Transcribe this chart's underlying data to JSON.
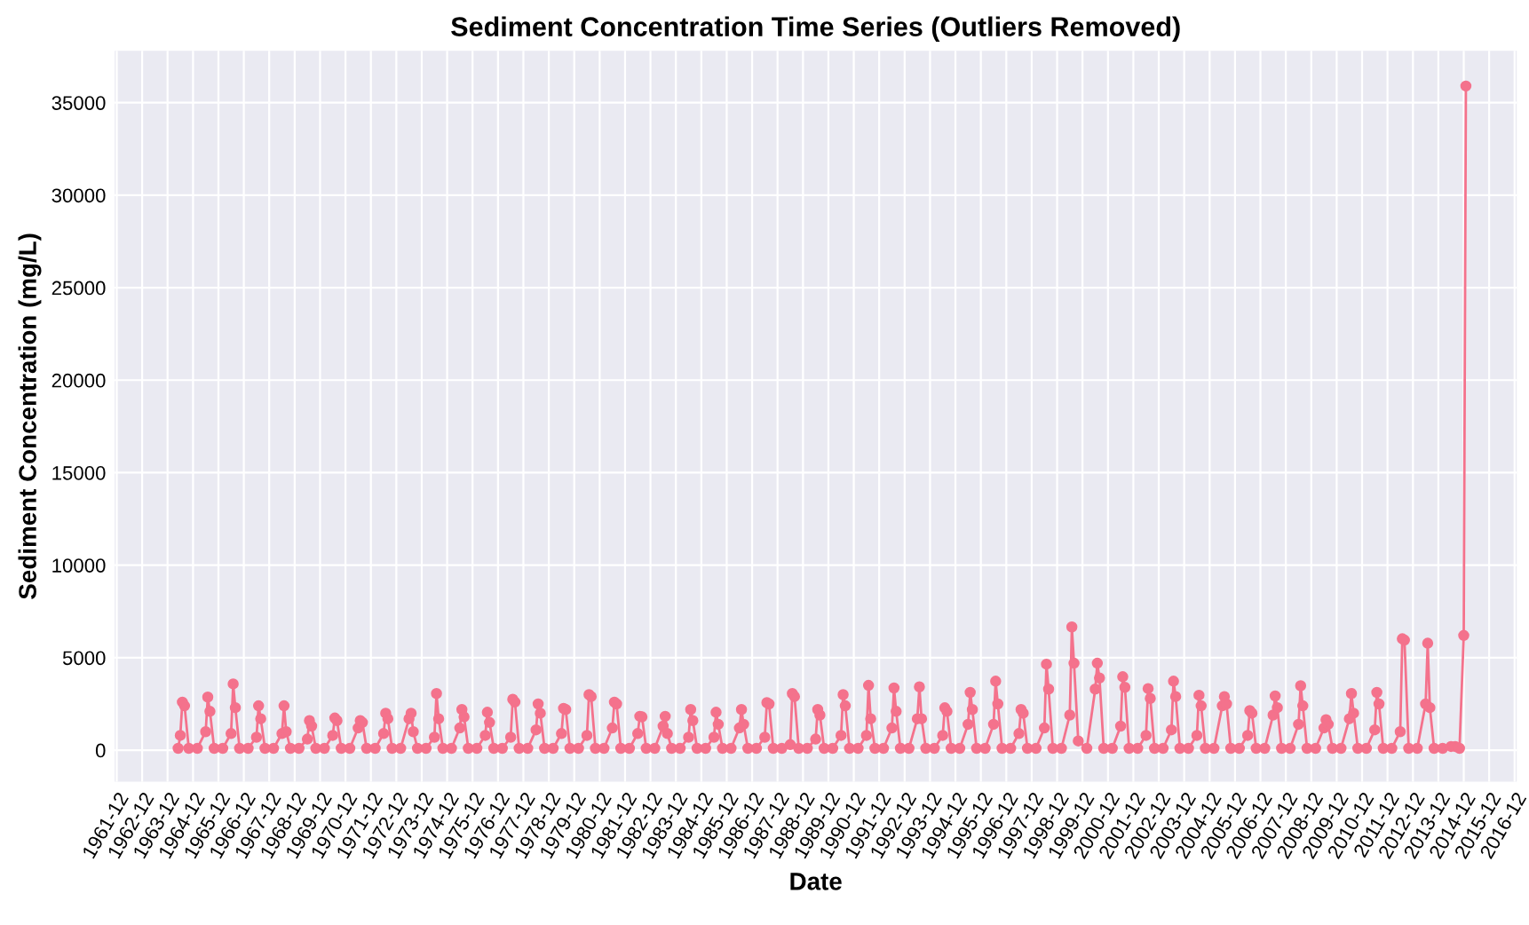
{
  "chart_data": {
    "type": "line",
    "title": "Sediment Concentration Time Series (Outliers Removed)",
    "xlabel": "Date",
    "ylabel": "Sediment Concentration (mg/L)",
    "xlim": [
      "1961-11",
      "2017-01"
    ],
    "ylim": [
      -1700,
      37800
    ],
    "xticks": [
      "1961-12",
      "1962-12",
      "1963-12",
      "1964-12",
      "1965-12",
      "1966-12",
      "1967-12",
      "1968-12",
      "1969-12",
      "1970-12",
      "1971-12",
      "1972-12",
      "1973-12",
      "1974-12",
      "1975-12",
      "1976-12",
      "1977-12",
      "1978-12",
      "1979-12",
      "1980-12",
      "1981-12",
      "1982-12",
      "1983-12",
      "1984-12",
      "1985-12",
      "1986-12",
      "1987-12",
      "1988-12",
      "1989-12",
      "1990-12",
      "1991-12",
      "1992-12",
      "1993-12",
      "1994-12",
      "1995-12",
      "1996-12",
      "1997-12",
      "1998-12",
      "1999-12",
      "2000-12",
      "2001-12",
      "2002-12",
      "2003-12",
      "2004-12",
      "2005-12",
      "2006-12",
      "2007-12",
      "2008-12",
      "2009-12",
      "2010-12",
      "2011-12",
      "2012-12",
      "2013-12",
      "2014-12",
      "2015-12",
      "2016-12"
    ],
    "yticks": [
      0,
      5000,
      10000,
      15000,
      20000,
      25000,
      30000,
      35000
    ],
    "grid": true,
    "marker": "circle",
    "line_style": "solid",
    "series": [
      {
        "color": "#f4728c",
        "x": [
          "1964-05",
          "1964-06",
          "1964-07",
          "1964-08",
          "1964-10",
          "1965-02",
          "1965-06",
          "1965-07",
          "1965-08",
          "1965-10",
          "1966-02",
          "1966-06",
          "1966-07",
          "1966-08",
          "1966-10",
          "1967-02",
          "1967-06",
          "1967-07",
          "1967-08",
          "1967-10",
          "1968-02",
          "1968-06",
          "1968-07",
          "1968-08",
          "1968-10",
          "1969-01",
          "1969-02",
          "1969-06",
          "1969-07",
          "1969-08",
          "1969-10",
          "1970-02",
          "1970-06",
          "1970-07",
          "1970-08",
          "1970-10",
          "1971-02",
          "1971-06",
          "1971-07",
          "1971-08",
          "1971-10",
          "1972-02",
          "1972-06",
          "1972-07",
          "1972-08",
          "1972-10",
          "1973-02",
          "1973-06",
          "1973-07",
          "1973-08",
          "1973-10",
          "1974-02",
          "1974-06",
          "1974-07",
          "1974-08",
          "1974-10",
          "1975-02",
          "1975-06",
          "1975-07",
          "1975-08",
          "1975-10",
          "1976-02",
          "1976-06",
          "1976-07",
          "1976-08",
          "1976-10",
          "1977-02",
          "1977-06",
          "1977-07",
          "1977-08",
          "1977-10",
          "1978-02",
          "1978-06",
          "1978-07",
          "1978-08",
          "1978-10",
          "1979-02",
          "1979-06",
          "1979-07",
          "1979-08",
          "1979-10",
          "1980-02",
          "1980-06",
          "1980-07",
          "1980-08",
          "1980-10",
          "1981-02",
          "1981-06",
          "1981-07",
          "1981-08",
          "1981-10",
          "1982-02",
          "1982-06",
          "1982-07",
          "1982-08",
          "1982-10",
          "1983-02",
          "1983-06",
          "1983-07",
          "1983-08",
          "1983-10",
          "1984-02",
          "1984-06",
          "1984-07",
          "1984-08",
          "1984-10",
          "1985-02",
          "1985-06",
          "1985-07",
          "1985-08",
          "1985-10",
          "1986-02",
          "1986-06",
          "1986-07",
          "1986-08",
          "1986-10",
          "1987-02",
          "1987-06",
          "1987-07",
          "1987-08",
          "1987-10",
          "1988-02",
          "1988-06",
          "1988-07",
          "1988-08",
          "1988-10",
          "1989-02",
          "1989-06",
          "1989-07",
          "1989-08",
          "1989-10",
          "1990-02",
          "1990-06",
          "1990-07",
          "1990-08",
          "1990-10",
          "1991-02",
          "1991-06",
          "1991-07",
          "1991-08",
          "1991-10",
          "1992-02",
          "1992-06",
          "1992-07",
          "1992-08",
          "1992-10",
          "1993-02",
          "1993-06",
          "1993-07",
          "1993-08",
          "1993-10",
          "1994-02",
          "1994-06",
          "1994-07",
          "1994-08",
          "1994-10",
          "1995-02",
          "1995-06",
          "1995-07",
          "1995-08",
          "1995-10",
          "1996-02",
          "1996-06",
          "1996-07",
          "1996-08",
          "1996-10",
          "1997-02",
          "1997-06",
          "1997-07",
          "1997-08",
          "1997-10",
          "1998-02",
          "1998-06",
          "1998-07",
          "1998-08",
          "1998-10",
          "1999-02",
          "1999-06",
          "1999-07",
          "1999-08",
          "1999-10",
          "2000-02",
          "2000-06",
          "2000-07",
          "2000-08",
          "2000-10",
          "2001-02",
          "2001-06",
          "2001-07",
          "2001-08",
          "2001-10",
          "2002-02",
          "2002-06",
          "2002-07",
          "2002-08",
          "2002-10",
          "2003-02",
          "2003-06",
          "2003-07",
          "2003-08",
          "2003-10",
          "2004-02",
          "2004-06",
          "2004-07",
          "2004-08",
          "2004-10",
          "2005-02",
          "2005-06",
          "2005-07",
          "2005-08",
          "2005-10",
          "2006-02",
          "2006-06",
          "2006-07",
          "2006-08",
          "2006-10",
          "2007-02",
          "2007-06",
          "2007-07",
          "2007-08",
          "2007-10",
          "2008-02",
          "2008-06",
          "2008-07",
          "2008-08",
          "2008-10",
          "2009-02",
          "2009-06",
          "2009-07",
          "2009-08",
          "2009-10",
          "2010-02",
          "2010-06",
          "2010-07",
          "2010-08",
          "2010-10",
          "2011-02",
          "2011-06",
          "2011-07",
          "2011-08",
          "2011-10",
          "2012-02",
          "2012-06",
          "2012-07",
          "2012-08",
          "2012-10",
          "2013-02",
          "2013-06",
          "2013-07",
          "2013-08",
          "2013-10",
          "2014-02",
          "2014-06",
          "2014-08",
          "2014-10",
          "2014-12",
          "2015-01"
        ],
        "values": [
          100,
          800,
          2600,
          2400,
          100,
          100,
          1000,
          2870,
          2100,
          100,
          100,
          900,
          3580,
          2300,
          100,
          100,
          700,
          2400,
          1700,
          100,
          100,
          900,
          2400,
          1000,
          100,
          null,
          100,
          600,
          1600,
          1300,
          100,
          100,
          800,
          1740,
          1600,
          100,
          100,
          1200,
          1600,
          1500,
          100,
          100,
          900,
          2000,
          1700,
          100,
          100,
          1700,
          2000,
          1000,
          100,
          100,
          700,
          3060,
          1700,
          100,
          100,
          1200,
          2200,
          1800,
          100,
          100,
          800,
          2050,
          1500,
          100,
          100,
          700,
          2750,
          2600,
          100,
          100,
          1100,
          2500,
          2000,
          100,
          100,
          900,
          2260,
          2200,
          100,
          100,
          800,
          3000,
          2900,
          100,
          100,
          1200,
          2600,
          2500,
          100,
          100,
          900,
          1830,
          1800,
          100,
          100,
          1300,
          1830,
          900,
          100,
          100,
          700,
          2200,
          1600,
          100,
          100,
          700,
          2050,
          1400,
          100,
          100,
          1200,
          2200,
          1400,
          100,
          100,
          700,
          2570,
          2500,
          100,
          100,
          300,
          3060,
          2900,
          100,
          100,
          600,
          2200,
          1900,
          100,
          100,
          800,
          3000,
          2400,
          100,
          100,
          800,
          3500,
          1700,
          100,
          100,
          1200,
          3360,
          2100,
          100,
          100,
          1700,
          3420,
          1700,
          100,
          100,
          800,
          2290,
          2100,
          100,
          100,
          1400,
          3120,
          2200,
          100,
          100,
          1400,
          3730,
          2500,
          100,
          100,
          900,
          2200,
          2000,
          100,
          100,
          1200,
          4650,
          3300,
          100,
          100,
          1900,
          6660,
          4700,
          500,
          100,
          3300,
          4700,
          3900,
          100,
          100,
          1300,
          3970,
          3400,
          100,
          100,
          800,
          3330,
          2800,
          100,
          100,
          1100,
          3730,
          2900,
          100,
          100,
          800,
          2970,
          2400,
          100,
          100,
          2400,
          2900,
          2500,
          100,
          100,
          800,
          2140,
          2000,
          100,
          100,
          1900,
          2930,
          2300,
          100,
          100,
          1400,
          3480,
          2400,
          100,
          100,
          1200,
          1650,
          1400,
          100,
          100,
          1700,
          3060,
          2000,
          100,
          100,
          1100,
          3120,
          2500,
          100,
          100,
          1000,
          6020,
          5950,
          100,
          100,
          2500,
          5780,
          2300,
          100,
          100,
          200,
          200,
          100,
          6200,
          35900
        ]
      }
    ]
  }
}
